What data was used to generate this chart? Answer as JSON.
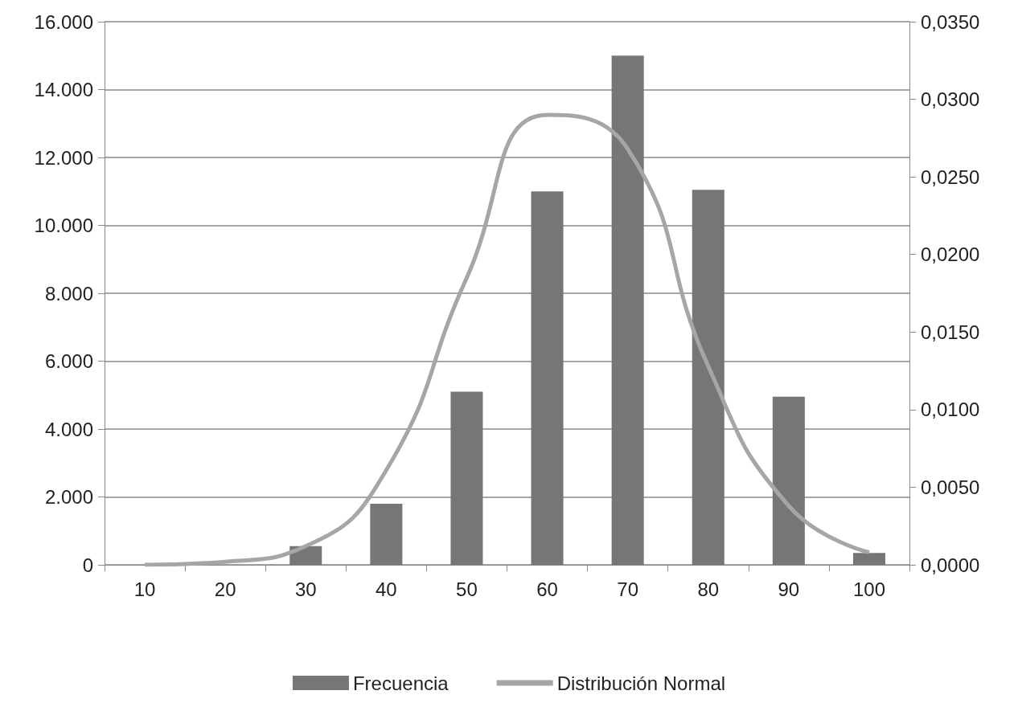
{
  "chart_data": {
    "type": "bar",
    "categories": [
      "10",
      "20",
      "30",
      "40",
      "50",
      "60",
      "70",
      "80",
      "90",
      "100"
    ],
    "series": [
      {
        "name": "Frecuencia",
        "color": "#767676",
        "values": [
          0,
          0,
          550,
          1800,
          5100,
          11000,
          15000,
          11050,
          4950,
          350
        ]
      },
      {
        "name": "Distribución Normal",
        "type": "line",
        "axis": "y2",
        "color": "#a6a6a6",
        "values": [
          0.0,
          0.0002,
          0.0012,
          0.0061,
          0.0185,
          0.029,
          0.0268,
          0.0128,
          0.0038,
          0.0008
        ]
      }
    ],
    "ylim": [
      0,
      16000
    ],
    "yticks": [
      {
        "value": 0,
        "label": "0"
      },
      {
        "value": 2000,
        "label": "2.000"
      },
      {
        "value": 4000,
        "label": "4.000"
      },
      {
        "value": 6000,
        "label": "6.000"
      },
      {
        "value": 8000,
        "label": "8.000"
      },
      {
        "value": 10000,
        "label": "10.000"
      },
      {
        "value": 12000,
        "label": "12.000"
      },
      {
        "value": 14000,
        "label": "14.000"
      },
      {
        "value": 16000,
        "label": "16.000"
      }
    ],
    "y2lim": [
      0,
      0.035
    ],
    "y2ticks": [
      {
        "value": 0,
        "label": "0,0000"
      },
      {
        "value": 0.005,
        "label": "0,0050"
      },
      {
        "value": 0.01,
        "label": "0,0100"
      },
      {
        "value": 0.015,
        "label": "0,0150"
      },
      {
        "value": 0.02,
        "label": "0,0200"
      },
      {
        "value": 0.025,
        "label": "0,0250"
      },
      {
        "value": 0.03,
        "label": "0,0300"
      },
      {
        "value": 0.035,
        "label": "0,0350"
      }
    ],
    "grid": "y",
    "legend": "bottom",
    "marker": "none"
  }
}
